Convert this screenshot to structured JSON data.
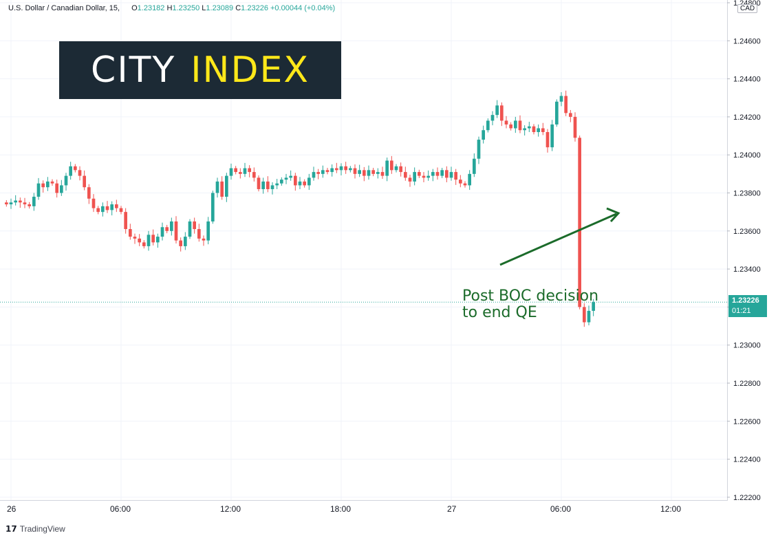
{
  "header": {
    "symbol": "U.S. Dollar / Canadian Dollar, 15,",
    "open_label": "O",
    "open": "1.23182",
    "high_label": "H",
    "high": "1.23250",
    "low_label": "L",
    "low": "1.23089",
    "close_label": "C",
    "close": "1.23226",
    "change": "+0.00044 (+0.04%)"
  },
  "logo": {
    "word1": "CITY",
    "word2": "INDEX"
  },
  "currency_box": "CAD",
  "price_tag": {
    "price": "1.23226",
    "timer": "01:21"
  },
  "annotation": {
    "line1": "Post BOC decision",
    "line2": "to end QE"
  },
  "footer": {
    "brand": "TradingView",
    "icon": "tradingview-logo-icon"
  },
  "colors": {
    "up": "#26a69a",
    "down": "#ef5350",
    "grid": "#f0f3fa",
    "annotation": "#1b6b2a",
    "logo_bg": "#1c2a35",
    "logo_accent": "#ffe81a"
  },
  "chart_data": {
    "type": "candlestick",
    "title": "U.S. Dollar / Canadian Dollar, 15",
    "ylim": [
      1.222,
      1.248
    ],
    "y_ticks": [
      "1.24800",
      "1.24600",
      "1.24400",
      "1.24200",
      "1.24000",
      "1.23800",
      "1.23600",
      "1.23400",
      "1.23200",
      "1.23000",
      "1.22800",
      "1.22600",
      "1.22400",
      "1.22200"
    ],
    "x_ticks": [
      {
        "label": "26",
        "hour": 0
      },
      {
        "label": "06:00",
        "hour": 6
      },
      {
        "label": "12:00",
        "hour": 12
      },
      {
        "label": "18:00",
        "hour": 18
      },
      {
        "label": "27",
        "hour": 24
      },
      {
        "label": "06:00",
        "hour": 30
      },
      {
        "label": "12:00",
        "hour": 36
      }
    ],
    "x_range_hours": [
      -0.3,
      39.3
    ],
    "first_bar_hour": -0.25,
    "bar_interval_hours": 0.25,
    "last_price": 1.23226,
    "closes": [
      1.2374,
      1.2375,
      1.2376,
      1.2375,
      1.2374,
      1.2373,
      1.2378,
      1.2385,
      1.2383,
      1.2386,
      1.2385,
      1.238,
      1.2384,
      1.2389,
      1.2394,
      1.2392,
      1.2389,
      1.2383,
      1.2377,
      1.2372,
      1.237,
      1.2373,
      1.2371,
      1.2374,
      1.2372,
      1.237,
      1.2361,
      1.2357,
      1.2356,
      1.2354,
      1.2352,
      1.2358,
      1.2354,
      1.2357,
      1.2362,
      1.236,
      1.2365,
      1.2355,
      1.2352,
      1.2357,
      1.2365,
      1.2361,
      1.2356,
      1.2355,
      1.2365,
      1.238,
      1.2386,
      1.2378,
      1.2389,
      1.2393,
      1.2391,
      1.239,
      1.2393,
      1.2391,
      1.2388,
      1.2382,
      1.2386,
      1.2382,
      1.2384,
      1.2385,
      1.2387,
      1.2388,
      1.2389,
      1.2384,
      1.2386,
      1.2384,
      1.2388,
      1.2391,
      1.239,
      1.2392,
      1.2391,
      1.2393,
      1.2392,
      1.2394,
      1.2392,
      1.2393,
      1.239,
      1.2392,
      1.2389,
      1.2392,
      1.239,
      1.2391,
      1.2389,
      1.2397,
      1.2392,
      1.2394,
      1.2391,
      1.2388,
      1.2386,
      1.2391,
      1.2389,
      1.2388,
      1.2389,
      1.2391,
      1.2389,
      1.2392,
      1.2388,
      1.2391,
      1.2387,
      1.2385,
      1.2384,
      1.239,
      1.2398,
      1.2408,
      1.2413,
      1.2418,
      1.2421,
      1.2426,
      1.2418,
      1.2416,
      1.2414,
      1.2418,
      1.2413,
      1.2414,
      1.2415,
      1.2412,
      1.2414,
      1.2412,
      1.2404,
      1.2416,
      1.2428,
      1.2431,
      1.2422,
      1.242,
      1.2409,
      1.232,
      1.2312,
      1.2318,
      1.23226
    ],
    "annotation_text": "Post BOC decision to end QE"
  }
}
